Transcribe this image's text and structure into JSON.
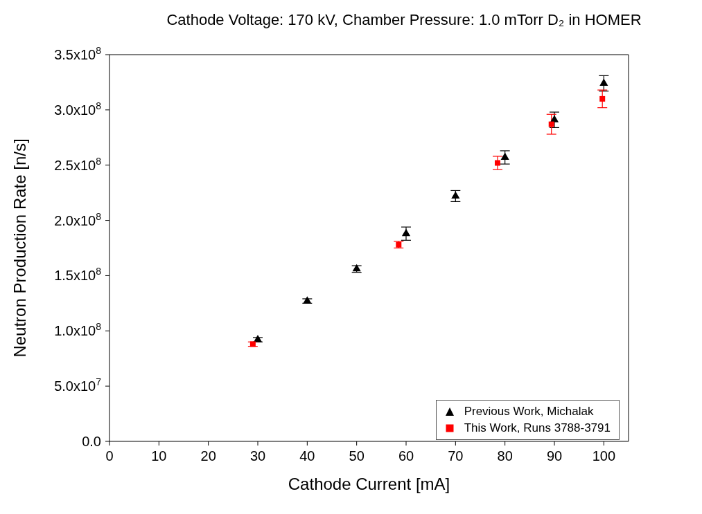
{
  "chart_data": {
    "type": "scatter",
    "title": "Cathode Voltage: 170 kV, Chamber Pressure: 1.0 mTorr D₂ in HOMER",
    "xlabel": "Cathode Current [mA]",
    "ylabel": "Neutron Production Rate [n/s]",
    "xlim": [
      0,
      105
    ],
    "xticks": [
      0,
      10,
      20,
      30,
      40,
      50,
      60,
      70,
      80,
      90,
      100
    ],
    "ylim": [
      0,
      350000000
    ],
    "yticks": [
      {
        "value": 0,
        "label": "0.0"
      },
      {
        "value": 50000000,
        "label": "5.0x10$^{7}$"
      },
      {
        "value": 100000000,
        "label": "1.0x10$^{8}$"
      },
      {
        "value": 150000000,
        "label": "1.5x10$^{8}$"
      },
      {
        "value": 200000000,
        "label": "2.0x10$^{8}$"
      },
      {
        "value": 250000000,
        "label": "2.5x10$^{8}$"
      },
      {
        "value": 300000000,
        "label": "3.0x10$^{8}$"
      },
      {
        "value": 350000000,
        "label": "3.5x10$^{8}$"
      }
    ],
    "grid": false,
    "legend": "bottom right",
    "series": [
      {
        "name": "Previous Work, Michalak",
        "color": "#000000",
        "marker": "triangle",
        "x": [
          30,
          40,
          50,
          60,
          70,
          80,
          90,
          100
        ],
        "values": [
          92000000,
          127000000,
          156000000,
          188000000,
          222000000,
          257000000,
          291000000,
          324000000
        ],
        "errors": [
          2000000,
          2000000,
          3000000,
          6000000,
          5000000,
          6000000,
          7000000,
          7000000
        ]
      },
      {
        "name": "This Work, Runs 3788-3791",
        "color": "#ff0000",
        "marker": "square",
        "x": [
          29,
          58.5,
          78.5,
          89.4,
          99.7
        ],
        "values": [
          88000000,
          178000000,
          252000000,
          287000000,
          310000000
        ],
        "errors": [
          2000000,
          3000000,
          6000000,
          9000000,
          8000000
        ]
      }
    ]
  }
}
